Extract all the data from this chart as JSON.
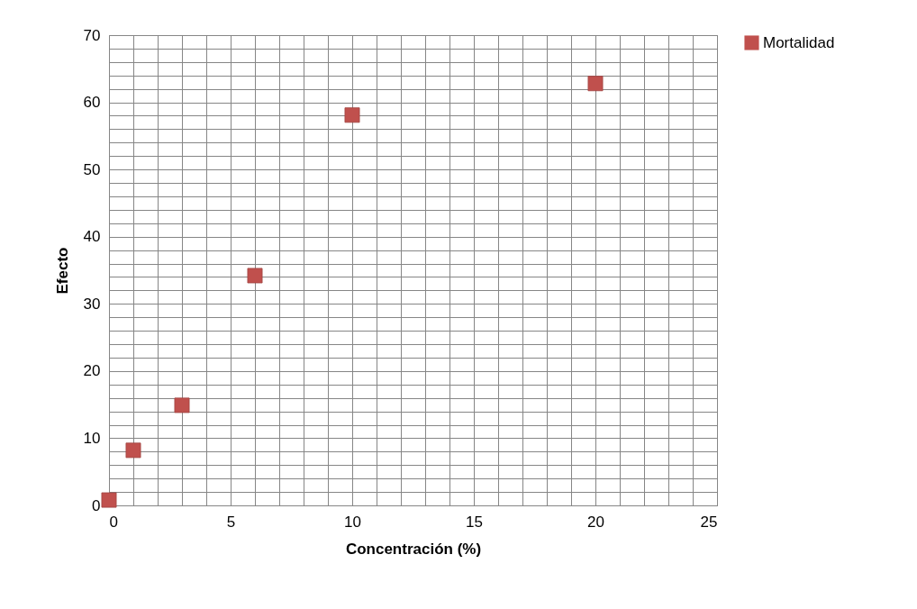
{
  "chart_data": {
    "type": "scatter",
    "xlabel": "Concentración (%)",
    "ylabel": "Efecto",
    "x": [
      0,
      1,
      3,
      6,
      10,
      20
    ],
    "series": [
      {
        "name": "Mortalidad",
        "color": "#c0504d",
        "values": [
          0.8,
          8.2,
          14.9,
          34.2,
          58.1,
          62.8
        ]
      }
    ],
    "xlim": [
      0,
      25
    ],
    "ylim": [
      0,
      70
    ],
    "xticks": [
      0,
      {
        "value": 1,
        "label": null
      },
      {
        "value": 2,
        "label": null
      },
      {
        "value": 3,
        "label": null
      },
      {
        "value": 4,
        "label": null
      },
      5,
      {
        "value": 6,
        "label": null
      },
      {
        "value": 7,
        "label": null
      },
      {
        "value": 8,
        "label": null
      },
      {
        "value": 9,
        "label": null
      },
      10,
      {
        "value": 11,
        "label": null
      },
      {
        "value": 12,
        "label": null
      },
      {
        "value": 13,
        "label": null
      },
      {
        "value": 14,
        "label": null
      },
      15,
      {
        "value": 16,
        "label": null
      },
      {
        "value": 17,
        "label": null
      },
      {
        "value": 18,
        "label": null
      },
      {
        "value": 19,
        "label": null
      },
      20,
      {
        "value": 21,
        "label": null
      },
      {
        "value": 22,
        "label": null
      },
      {
        "value": 23,
        "label": null
      },
      {
        "value": 24,
        "label": null
      },
      25
    ],
    "yticks": [
      0,
      {
        "value": 2,
        "label": null
      },
      {
        "value": 4,
        "label": null
      },
      {
        "value": 6,
        "label": null
      },
      {
        "value": 8,
        "label": null
      },
      10,
      {
        "value": 12,
        "label": null
      },
      {
        "value": 14,
        "label": null
      },
      {
        "value": 16,
        "label": null
      },
      {
        "value": 18,
        "label": null
      },
      20,
      {
        "value": 22,
        "label": null
      },
      {
        "value": 24,
        "label": null
      },
      {
        "value": 26,
        "label": null
      },
      {
        "value": 28,
        "label": null
      },
      30,
      {
        "value": 32,
        "label": null
      },
      {
        "value": 34,
        "label": null
      },
      {
        "value": 36,
        "label": null
      },
      {
        "value": 38,
        "label": null
      },
      40,
      {
        "value": 42,
        "label": null
      },
      {
        "value": 44,
        "label": null
      },
      {
        "value": 46,
        "label": null
      },
      {
        "value": 48,
        "label": null
      },
      50,
      {
        "value": 52,
        "label": null
      },
      {
        "value": 54,
        "label": null
      },
      {
        "value": 56,
        "label": null
      },
      {
        "value": 58,
        "label": null
      },
      60,
      {
        "value": 62,
        "label": null
      },
      {
        "value": 64,
        "label": null
      },
      {
        "value": 66,
        "label": null
      },
      {
        "value": 68,
        "label": null
      },
      70
    ],
    "grid": true,
    "legend": "right",
    "marker": "square"
  }
}
